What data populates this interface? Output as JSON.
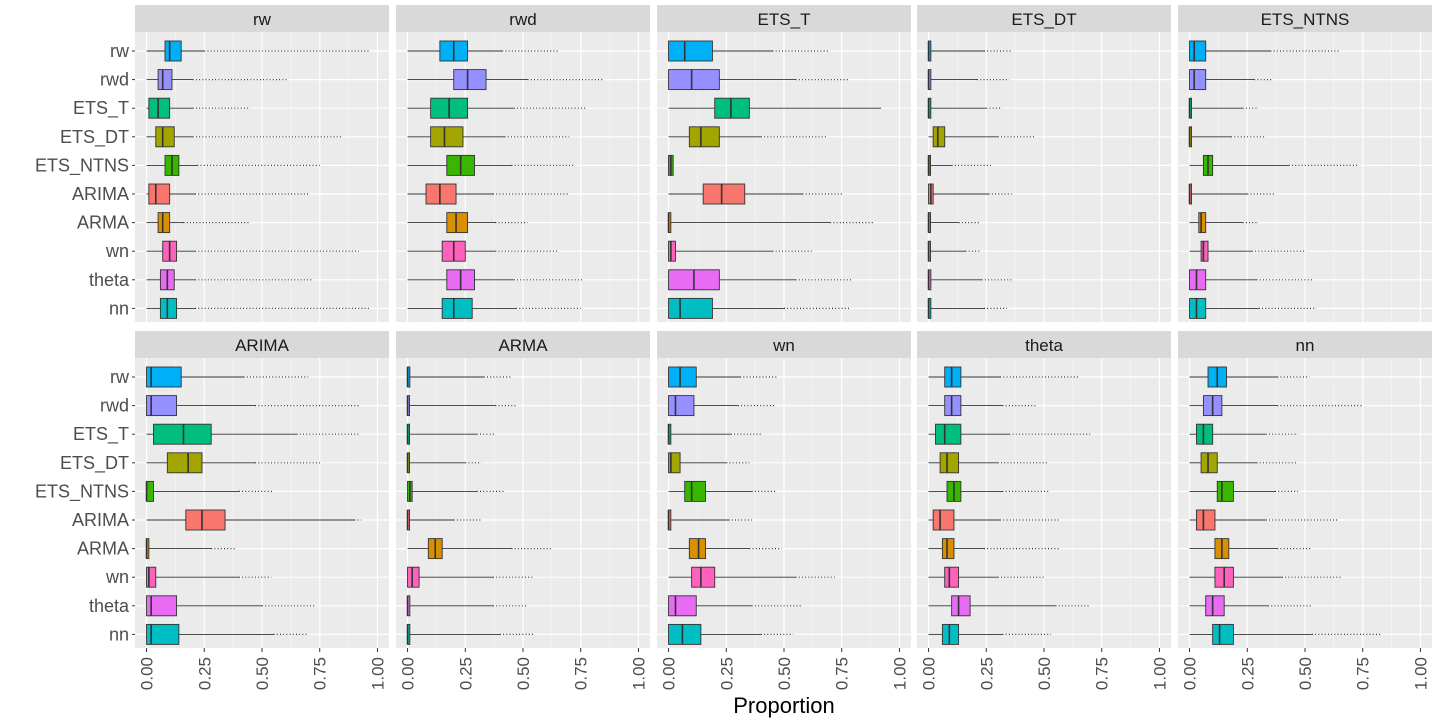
{
  "chart_data": {
    "type": "boxplot",
    "xlabel": "Proportion",
    "xlim": [
      -0.05,
      1.05
    ],
    "x_ticks": [
      0,
      0.25,
      0.5,
      0.75,
      1
    ],
    "x_tick_labels": [
      "0.00",
      "0.25",
      "0.50",
      "0.75",
      "1.00"
    ],
    "orientation": "horizontal",
    "grid": true,
    "legend": "none",
    "categories": [
      "rw",
      "rwd",
      "ETS_T",
      "ETS_DT",
      "ETS_NTNS",
      "ARIMA",
      "ARMA",
      "wn",
      "theta",
      "nn"
    ],
    "colors": {
      "rw": "#00B0F6",
      "rwd": "#9590FF",
      "ETS_T": "#00BF7D",
      "ETS_DT": "#A3A500",
      "ETS_NTNS": "#39B600",
      "ARIMA": "#F8766D",
      "ARMA": "#D89000",
      "wn": "#FF62BC",
      "theta": "#E76BF3",
      "nn": "#00BFC4"
    },
    "panels": [
      {
        "title": "rw",
        "boxes": {
          "rw": {
            "q1": 0.08,
            "med": 0.1,
            "q3": 0.15,
            "whisker_high": 0.25,
            "outlier_max": 0.97
          },
          "rwd": {
            "q1": 0.05,
            "med": 0.07,
            "q3": 0.11,
            "whisker_high": 0.2,
            "outlier_max": 0.61
          },
          "ETS_T": {
            "q1": 0.01,
            "med": 0.05,
            "q3": 0.1,
            "whisker_high": 0.2,
            "outlier_max": 0.45
          },
          "ETS_DT": {
            "q1": 0.04,
            "med": 0.07,
            "q3": 0.12,
            "whisker_high": 0.2,
            "outlier_max": 0.85
          },
          "ETS_NTNS": {
            "q1": 0.08,
            "med": 0.11,
            "q3": 0.14,
            "whisker_high": 0.22,
            "outlier_max": 0.75
          },
          "ARIMA": {
            "q1": 0.01,
            "med": 0.04,
            "q3": 0.1,
            "whisker_high": 0.21,
            "outlier_max": 0.7
          },
          "ARMA": {
            "q1": 0.05,
            "med": 0.07,
            "q3": 0.1,
            "whisker_high": 0.16,
            "outlier_max": 0.45
          },
          "wn": {
            "q1": 0.07,
            "med": 0.1,
            "q3": 0.13,
            "whisker_high": 0.21,
            "outlier_max": 0.92
          },
          "theta": {
            "q1": 0.06,
            "med": 0.09,
            "q3": 0.12,
            "whisker_high": 0.21,
            "outlier_max": 0.72
          },
          "nn": {
            "q1": 0.06,
            "med": 0.09,
            "q3": 0.13,
            "whisker_high": 0.21,
            "outlier_max": 0.97
          }
        }
      },
      {
        "title": "rwd",
        "boxes": {
          "rw": {
            "q1": 0.14,
            "med": 0.2,
            "q3": 0.26,
            "whisker_high": 0.41,
            "outlier_max": 0.65
          },
          "rwd": {
            "q1": 0.2,
            "med": 0.26,
            "q3": 0.34,
            "whisker_high": 0.52,
            "outlier_max": 0.85
          },
          "ETS_T": {
            "q1": 0.1,
            "med": 0.18,
            "q3": 0.26,
            "whisker_high": 0.46,
            "outlier_max": 0.77
          },
          "ETS_DT": {
            "q1": 0.1,
            "med": 0.16,
            "q3": 0.24,
            "whisker_high": 0.42,
            "outlier_max": 0.7
          },
          "ETS_NTNS": {
            "q1": 0.17,
            "med": 0.23,
            "q3": 0.29,
            "whisker_high": 0.45,
            "outlier_max": 0.72
          },
          "ARIMA": {
            "q1": 0.08,
            "med": 0.14,
            "q3": 0.21,
            "whisker_high": 0.37,
            "outlier_max": 0.7
          },
          "ARMA": {
            "q1": 0.17,
            "med": 0.21,
            "q3": 0.26,
            "whisker_high": 0.38,
            "outlier_max": 0.52
          },
          "wn": {
            "q1": 0.15,
            "med": 0.2,
            "q3": 0.25,
            "whisker_high": 0.38,
            "outlier_max": 0.65
          },
          "theta": {
            "q1": 0.17,
            "med": 0.23,
            "q3": 0.29,
            "whisker_high": 0.46,
            "outlier_max": 0.76
          },
          "nn": {
            "q1": 0.15,
            "med": 0.2,
            "q3": 0.28,
            "whisker_high": 0.47,
            "outlier_max": 0.75
          }
        }
      },
      {
        "title": "ETS_T",
        "boxes": {
          "rw": {
            "q1": 0.0,
            "med": 0.07,
            "q3": 0.19,
            "whisker_high": 0.45,
            "outlier_max": 0.7
          },
          "rwd": {
            "q1": 0.0,
            "med": 0.1,
            "q3": 0.22,
            "whisker_high": 0.55,
            "outlier_max": 0.78
          },
          "ETS_T": {
            "q1": 0.2,
            "med": 0.27,
            "q3": 0.35,
            "whisker_high": 0.92,
            "outlier_max": 0.92
          },
          "ETS_DT": {
            "q1": 0.09,
            "med": 0.14,
            "q3": 0.22,
            "whisker_high": 0.4,
            "outlier_max": 0.69
          },
          "ETS_NTNS": {
            "q1": 0.0,
            "med": 0.01,
            "q3": 0.02,
            "whisker_high": 0.02,
            "outlier_max": 0.02
          },
          "ARIMA": {
            "q1": 0.15,
            "med": 0.23,
            "q3": 0.33,
            "whisker_high": 0.58,
            "outlier_max": 0.76
          },
          "ARMA": {
            "q1": 0.0,
            "med": 0.0,
            "q3": 0.01,
            "whisker_high": 0.7,
            "outlier_max": 0.89
          },
          "wn": {
            "q1": 0.0,
            "med": 0.01,
            "q3": 0.03,
            "whisker_high": 0.45,
            "outlier_max": 0.62
          },
          "theta": {
            "q1": 0.0,
            "med": 0.11,
            "q3": 0.22,
            "whisker_high": 0.55,
            "outlier_max": 0.79
          },
          "nn": {
            "q1": 0.0,
            "med": 0.05,
            "q3": 0.19,
            "whisker_high": 0.5,
            "outlier_max": 0.79
          }
        }
      },
      {
        "title": "ETS_DT",
        "boxes": {
          "rw": {
            "q1": 0.0,
            "med": 0.0,
            "q3": 0.01,
            "whisker_high": 0.24,
            "outlier_max": 0.36
          },
          "rwd": {
            "q1": 0.0,
            "med": 0.0,
            "q3": 0.01,
            "whisker_high": 0.21,
            "outlier_max": 0.35
          },
          "ETS_T": {
            "q1": 0.0,
            "med": 0.0,
            "q3": 0.01,
            "whisker_high": 0.25,
            "outlier_max": 0.32
          },
          "ETS_DT": {
            "q1": 0.02,
            "med": 0.04,
            "q3": 0.07,
            "whisker_high": 0.3,
            "outlier_max": 0.46
          },
          "ETS_NTNS": {
            "q1": 0.0,
            "med": 0.0,
            "q3": 0.0,
            "whisker_high": 0.1,
            "outlier_max": 0.27
          },
          "ARIMA": {
            "q1": 0.0,
            "med": 0.01,
            "q3": 0.02,
            "whisker_high": 0.26,
            "outlier_max": 0.36
          },
          "ARMA": {
            "q1": 0.0,
            "med": 0.0,
            "q3": 0.0,
            "whisker_high": 0.13,
            "outlier_max": 0.22
          },
          "wn": {
            "q1": 0.0,
            "med": 0.0,
            "q3": 0.0,
            "whisker_high": 0.16,
            "outlier_max": 0.22
          },
          "theta": {
            "q1": 0.0,
            "med": 0.0,
            "q3": 0.01,
            "whisker_high": 0.23,
            "outlier_max": 0.36
          },
          "nn": {
            "q1": 0.0,
            "med": 0.0,
            "q3": 0.01,
            "whisker_high": 0.24,
            "outlier_max": 0.34
          }
        }
      },
      {
        "title": "ETS_NTNS",
        "boxes": {
          "rw": {
            "q1": 0.0,
            "med": 0.02,
            "q3": 0.07,
            "whisker_high": 0.35,
            "outlier_max": 0.65
          },
          "rwd": {
            "q1": 0.0,
            "med": 0.02,
            "q3": 0.07,
            "whisker_high": 0.28,
            "outlier_max": 0.36
          },
          "ETS_T": {
            "q1": 0.0,
            "med": 0.0,
            "q3": 0.0,
            "whisker_high": 0.23,
            "outlier_max": 0.3
          },
          "ETS_DT": {
            "q1": 0.0,
            "med": 0.0,
            "q3": 0.0,
            "whisker_high": 0.18,
            "outlier_max": 0.33
          },
          "ETS_NTNS": {
            "q1": 0.06,
            "med": 0.08,
            "q3": 0.1,
            "whisker_high": 0.43,
            "outlier_max": 0.73
          },
          "ARIMA": {
            "q1": 0.0,
            "med": 0.0,
            "q3": 0.0,
            "whisker_high": 0.25,
            "outlier_max": 0.37
          },
          "ARMA": {
            "q1": 0.04,
            "med": 0.05,
            "q3": 0.07,
            "whisker_high": 0.23,
            "outlier_max": 0.3
          },
          "wn": {
            "q1": 0.05,
            "med": 0.06,
            "q3": 0.08,
            "whisker_high": 0.27,
            "outlier_max": 0.5
          },
          "theta": {
            "q1": 0.0,
            "med": 0.03,
            "q3": 0.07,
            "whisker_high": 0.29,
            "outlier_max": 0.53
          },
          "nn": {
            "q1": 0.0,
            "med": 0.03,
            "q3": 0.07,
            "whisker_high": 0.3,
            "outlier_max": 0.55
          }
        }
      },
      {
        "title": "ARIMA",
        "boxes": {
          "rw": {
            "q1": 0.0,
            "med": 0.02,
            "q3": 0.15,
            "whisker_high": 0.42,
            "outlier_max": 0.7
          },
          "rwd": {
            "q1": 0.0,
            "med": 0.02,
            "q3": 0.13,
            "whisker_high": 0.47,
            "outlier_max": 0.92
          },
          "ETS_T": {
            "q1": 0.03,
            "med": 0.16,
            "q3": 0.28,
            "whisker_high": 0.65,
            "outlier_max": 0.92
          },
          "ETS_DT": {
            "q1": 0.09,
            "med": 0.18,
            "q3": 0.24,
            "whisker_high": 0.47,
            "outlier_max": 0.76
          },
          "ETS_NTNS": {
            "q1": 0.0,
            "med": 0.0,
            "q3": 0.03,
            "whisker_high": 0.4,
            "outlier_max": 0.55
          },
          "ARIMA": {
            "q1": 0.17,
            "med": 0.24,
            "q3": 0.34,
            "whisker_high": 0.9,
            "outlier_max": 0.93
          },
          "ARMA": {
            "q1": 0.0,
            "med": 0.0,
            "q3": 0.01,
            "whisker_high": 0.28,
            "outlier_max": 0.39
          },
          "wn": {
            "q1": 0.0,
            "med": 0.01,
            "q3": 0.04,
            "whisker_high": 0.4,
            "outlier_max": 0.54
          },
          "theta": {
            "q1": 0.0,
            "med": 0.02,
            "q3": 0.13,
            "whisker_high": 0.5,
            "outlier_max": 0.73
          },
          "nn": {
            "q1": 0.0,
            "med": 0.02,
            "q3": 0.14,
            "whisker_high": 0.55,
            "outlier_max": 0.7
          }
        }
      },
      {
        "title": "ARMA",
        "boxes": {
          "rw": {
            "q1": 0.0,
            "med": 0.0,
            "q3": 0.01,
            "whisker_high": 0.33,
            "outlier_max": 0.45
          },
          "rwd": {
            "q1": 0.0,
            "med": 0.0,
            "q3": 0.0,
            "whisker_high": 0.38,
            "outlier_max": 0.47
          },
          "ETS_T": {
            "q1": 0.0,
            "med": 0.0,
            "q3": 0.0,
            "whisker_high": 0.3,
            "outlier_max": 0.38
          },
          "ETS_DT": {
            "q1": 0.0,
            "med": 0.0,
            "q3": 0.0,
            "whisker_high": 0.25,
            "outlier_max": 0.32
          },
          "ETS_NTNS": {
            "q1": 0.0,
            "med": 0.01,
            "q3": 0.02,
            "whisker_high": 0.3,
            "outlier_max": 0.42
          },
          "ARIMA": {
            "q1": 0.0,
            "med": 0.0,
            "q3": 0.0,
            "whisker_high": 0.2,
            "outlier_max": 0.32
          },
          "ARMA": {
            "q1": 0.09,
            "med": 0.12,
            "q3": 0.15,
            "whisker_high": 0.45,
            "outlier_max": 0.62
          },
          "wn": {
            "q1": 0.0,
            "med": 0.02,
            "q3": 0.05,
            "whisker_high": 0.37,
            "outlier_max": 0.55
          },
          "theta": {
            "q1": 0.0,
            "med": 0.0,
            "q3": 0.01,
            "whisker_high": 0.37,
            "outlier_max": 0.52
          },
          "nn": {
            "q1": 0.0,
            "med": 0.0,
            "q3": 0.01,
            "whisker_high": 0.4,
            "outlier_max": 0.55
          }
        }
      },
      {
        "title": "wn",
        "boxes": {
          "rw": {
            "q1": 0.0,
            "med": 0.05,
            "q3": 0.12,
            "whisker_high": 0.31,
            "outlier_max": 0.47
          },
          "rwd": {
            "q1": 0.0,
            "med": 0.03,
            "q3": 0.11,
            "whisker_high": 0.3,
            "outlier_max": 0.46
          },
          "ETS_T": {
            "q1": 0.0,
            "med": 0.0,
            "q3": 0.01,
            "whisker_high": 0.27,
            "outlier_max": 0.4
          },
          "ETS_DT": {
            "q1": 0.0,
            "med": 0.01,
            "q3": 0.05,
            "whisker_high": 0.25,
            "outlier_max": 0.35
          },
          "ETS_NTNS": {
            "q1": 0.07,
            "med": 0.1,
            "q3": 0.16,
            "whisker_high": 0.36,
            "outlier_max": 0.47
          },
          "ARIMA": {
            "q1": 0.0,
            "med": 0.0,
            "q3": 0.01,
            "whisker_high": 0.26,
            "outlier_max": 0.36
          },
          "ARMA": {
            "q1": 0.09,
            "med": 0.13,
            "q3": 0.16,
            "whisker_high": 0.35,
            "outlier_max": 0.49
          },
          "wn": {
            "q1": 0.1,
            "med": 0.14,
            "q3": 0.2,
            "whisker_high": 0.55,
            "outlier_max": 0.72
          },
          "theta": {
            "q1": 0.0,
            "med": 0.03,
            "q3": 0.12,
            "whisker_high": 0.36,
            "outlier_max": 0.58
          },
          "nn": {
            "q1": 0.0,
            "med": 0.06,
            "q3": 0.14,
            "whisker_high": 0.4,
            "outlier_max": 0.54
          }
        }
      },
      {
        "title": "theta",
        "boxes": {
          "rw": {
            "q1": 0.07,
            "med": 0.1,
            "q3": 0.14,
            "whisker_high": 0.31,
            "outlier_max": 0.65
          },
          "rwd": {
            "q1": 0.07,
            "med": 0.1,
            "q3": 0.14,
            "whisker_high": 0.32,
            "outlier_max": 0.47
          },
          "ETS_T": {
            "q1": 0.03,
            "med": 0.07,
            "q3": 0.14,
            "whisker_high": 0.35,
            "outlier_max": 0.7
          },
          "ETS_DT": {
            "q1": 0.05,
            "med": 0.08,
            "q3": 0.13,
            "whisker_high": 0.3,
            "outlier_max": 0.52
          },
          "ETS_NTNS": {
            "q1": 0.08,
            "med": 0.11,
            "q3": 0.14,
            "whisker_high": 0.32,
            "outlier_max": 0.52
          },
          "ARIMA": {
            "q1": 0.02,
            "med": 0.05,
            "q3": 0.11,
            "whisker_high": 0.31,
            "outlier_max": 0.57
          },
          "ARMA": {
            "q1": 0.06,
            "med": 0.08,
            "q3": 0.11,
            "whisker_high": 0.24,
            "outlier_max": 0.57
          },
          "wn": {
            "q1": 0.07,
            "med": 0.09,
            "q3": 0.13,
            "whisker_high": 0.3,
            "outlier_max": 0.5
          },
          "theta": {
            "q1": 0.1,
            "med": 0.13,
            "q3": 0.18,
            "whisker_high": 0.55,
            "outlier_max": 0.7
          },
          "nn": {
            "q1": 0.06,
            "med": 0.09,
            "q3": 0.13,
            "whisker_high": 0.32,
            "outlier_max": 0.53
          }
        }
      },
      {
        "title": "nn",
        "boxes": {
          "rw": {
            "q1": 0.08,
            "med": 0.12,
            "q3": 0.16,
            "whisker_high": 0.38,
            "outlier_max": 0.52
          },
          "rwd": {
            "q1": 0.06,
            "med": 0.1,
            "q3": 0.14,
            "whisker_high": 0.38,
            "outlier_max": 0.75
          },
          "ETS_T": {
            "q1": 0.03,
            "med": 0.06,
            "q3": 0.1,
            "whisker_high": 0.33,
            "outlier_max": 0.47
          },
          "ETS_DT": {
            "q1": 0.05,
            "med": 0.08,
            "q3": 0.12,
            "whisker_high": 0.29,
            "outlier_max": 0.47
          },
          "ETS_NTNS": {
            "q1": 0.12,
            "med": 0.14,
            "q3": 0.19,
            "whisker_high": 0.37,
            "outlier_max": 0.47
          },
          "ARIMA": {
            "q1": 0.03,
            "med": 0.06,
            "q3": 0.11,
            "whisker_high": 0.33,
            "outlier_max": 0.64
          },
          "ARMA": {
            "q1": 0.11,
            "med": 0.14,
            "q3": 0.17,
            "whisker_high": 0.38,
            "outlier_max": 0.53
          },
          "wn": {
            "q1": 0.11,
            "med": 0.15,
            "q3": 0.19,
            "whisker_high": 0.4,
            "outlier_max": 0.66
          },
          "theta": {
            "q1": 0.07,
            "med": 0.1,
            "q3": 0.15,
            "whisker_high": 0.34,
            "outlier_max": 0.53
          },
          "nn": {
            "q1": 0.1,
            "med": 0.13,
            "q3": 0.19,
            "whisker_high": 0.53,
            "outlier_max": 0.83
          }
        }
      }
    ]
  }
}
